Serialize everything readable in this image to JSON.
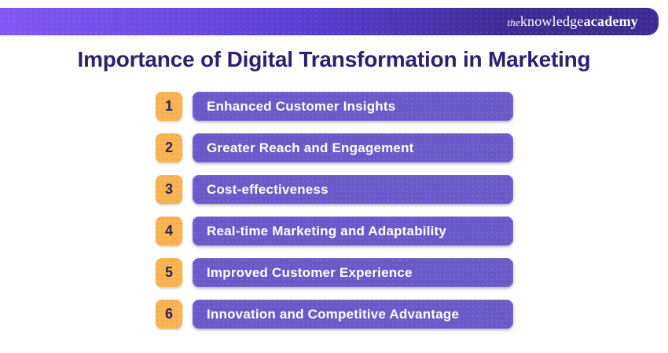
{
  "header": {
    "logo": {
      "the": "the",
      "knowledge": "knowledge",
      "academy": "academy"
    }
  },
  "title": "Importance of Digital Transformation in Marketing",
  "items": [
    {
      "number": "1",
      "label": "Enhanced Customer Insights"
    },
    {
      "number": "2",
      "label": "Greater Reach and Engagement"
    },
    {
      "number": "3",
      "label": "Cost-effectiveness"
    },
    {
      "number": "4",
      "label": "Real-time Marketing and Adaptability"
    },
    {
      "number": "5",
      "label": "Improved Customer Experience"
    },
    {
      "number": "6",
      "label": "Innovation and Competitive Advantage"
    }
  ],
  "colors": {
    "bar": "#6a5ac9",
    "number_box": "#f8b455",
    "title_text": "#2b2171",
    "bar_text": "#ffffff",
    "number_text": "#2a2353",
    "header_gradient_left": "#8158f5",
    "header_gradient_mid": "#5b3fd6",
    "header_gradient_right": "#3d2b92"
  }
}
